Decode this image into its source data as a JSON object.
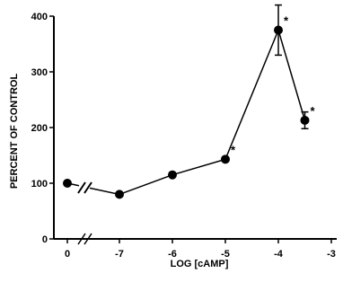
{
  "chart_data": {
    "type": "line",
    "xlabel": "LOG [cAMP]",
    "ylabel": "PERCENT OF CONTROL",
    "x_ticks": [
      "0",
      "-7",
      "-6",
      "-5",
      "-4",
      "-3"
    ],
    "y_ticks": [
      "0",
      "100",
      "200",
      "300",
      "400"
    ],
    "ylim": [
      0,
      400
    ],
    "grid": false,
    "axis_break": true,
    "control": {
      "x_label": "0",
      "y": 100
    },
    "series": [
      {
        "points": [
          {
            "x": -7,
            "y": 80,
            "err": 0,
            "significant": false
          },
          {
            "x": -6,
            "y": 115,
            "err": 0,
            "significant": false
          },
          {
            "x": -5,
            "y": 143,
            "err": 0,
            "significant": true
          },
          {
            "x": -4,
            "y": 375,
            "err": 45,
            "significant": true
          },
          {
            "x": -3.5,
            "y": 213,
            "err": 15,
            "significant": true
          }
        ]
      }
    ],
    "significance_marker": "*"
  }
}
